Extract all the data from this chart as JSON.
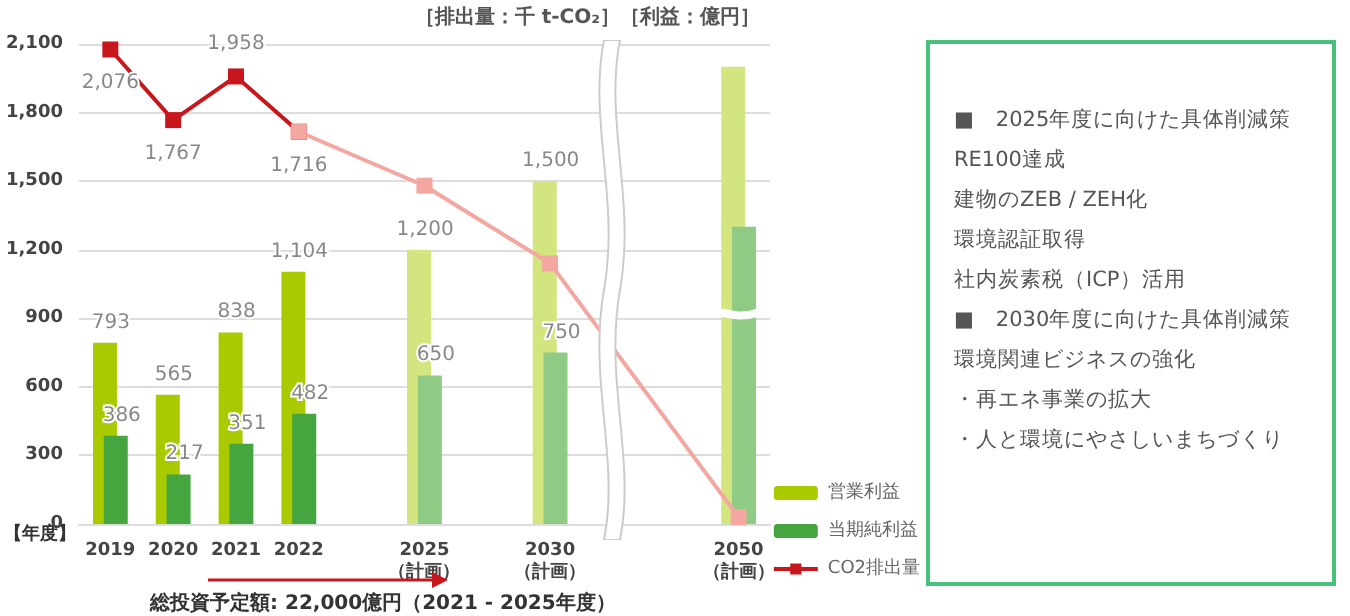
{
  "chart_data": [
    {
      "type": "bar",
      "categories": [
        "2019",
        "2020",
        "2021",
        "2022",
        null,
        "2025\n（計画）",
        null,
        "2030\n（計画）",
        null,
        null,
        "2050\n（計画）"
      ],
      "xlabel": "【年度】",
      "ylim": [
        0,
        2100
      ],
      "yticks": [
        0,
        300,
        600,
        900,
        {
          "value": 1200,
          "label": "1,200"
        },
        {
          "value": 1500,
          "label": "1,500"
        },
        {
          "value": 1800,
          "label": "1,800"
        },
        {
          "value": 2100,
          "label": "2,100"
        }
      ],
      "grid": "y",
      "legend": "bottom right",
      "annotations": [
        "［排出量：千 t-CO₂］［利益：億円］",
        "総投資予定額: 22,000億円（2021 - 2025年度）"
      ],
      "series": [
        {
          "name": "営業利益",
          "type": "bar",
          "color": "#a9c900",
          "colors": [
            "#a9c900",
            "#a9c900",
            "#a9c900",
            "#a9c900",
            null,
            "#d3e57f",
            null,
            "#d3e57f",
            null,
            null,
            "#d3e57f"
          ],
          "values": [
            793,
            565,
            838,
            1104,
            null,
            1200,
            null,
            1500,
            null,
            null,
            2000
          ],
          "value_labels": [
            "793",
            "565",
            "838",
            "1,104",
            null,
            "1,200",
            null,
            "1,500",
            null,
            null,
            null
          ]
        },
        {
          "name": "当期純利益",
          "type": "bar",
          "color": "#45a63f",
          "colors": [
            "#45a63f",
            "#45a63f",
            "#45a63f",
            "#45a63f",
            null,
            "#8fcb84",
            null,
            "#8fcb84",
            null,
            null,
            "#8fcb84"
          ],
          "values": [
            386,
            217,
            351,
            482,
            null,
            650,
            null,
            750,
            null,
            null,
            1300
          ],
          "value_labels": [
            "386",
            "217",
            "351",
            "482",
            null,
            "650",
            null,
            "750",
            null,
            null,
            null
          ]
        },
        {
          "name": "CO2排出量",
          "type": "line",
          "color": "#c8161d",
          "marker": "square",
          "values": [
            2076,
            1767,
            1958,
            1716,
            null,
            null,
            null,
            null,
            null,
            null,
            null
          ],
          "value_labels": [
            "2,076",
            "1,767",
            "1,958",
            "1,716",
            null,
            null,
            null,
            null,
            null,
            null,
            null
          ]
        },
        {
          "type": "line",
          "color": "#f4a6a0",
          "marker": "square",
          "values": [
            null,
            null,
            null,
            1716,
            null,
            1480,
            null,
            1140,
            null,
            null,
            30
          ]
        }
      ]
    },
    {
      "type": "other",
      "annotations": [
        "■　2025年度に向けた具体削減策",
        "RE100達成",
        "建物のZEB / ZEH化",
        "環境認証取得",
        "社内炭素税（ICP）活用",
        "■　2030年度に向けた具体削減策",
        "環境関連ビジネスの強化",
        "・再エネ事業の拡大",
        "・人と環境にやさしいまちづくり"
      ]
    }
  ]
}
